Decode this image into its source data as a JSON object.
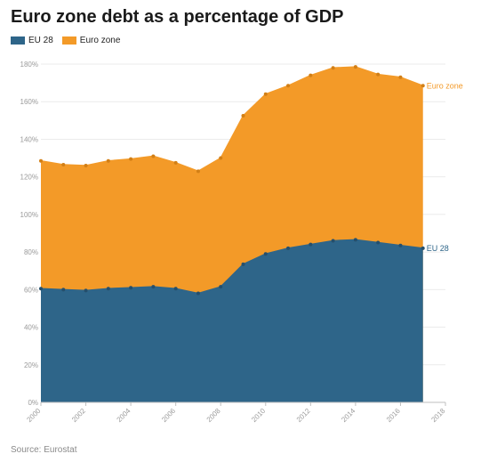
{
  "header": {
    "title": "Euro zone debt as a percentage of GDP"
  },
  "legend": [
    {
      "label": "EU 28",
      "color": "#2e6589"
    },
    {
      "label": "Euro zone",
      "color": "#f39a28"
    }
  ],
  "source": "Source: Eurostat",
  "chart_data": {
    "type": "area",
    "x": [
      2000,
      2001,
      2002,
      2003,
      2004,
      2005,
      2006,
      2007,
      2008,
      2009,
      2010,
      2011,
      2012,
      2013,
      2014,
      2015,
      2016,
      2017
    ],
    "series": [
      {
        "name": "EU 28",
        "color": "#2e6589",
        "values": [
          60.5,
          60,
          59.5,
          60.5,
          61,
          61.5,
          60.5,
          58,
          61.5,
          73.5,
          79,
          82,
          84,
          86,
          86.5,
          85,
          83.5,
          82
        ]
      },
      {
        "name": "Euro zone",
        "color": "#f39a28",
        "values": [
          128.5,
          126.5,
          126,
          128.5,
          129.5,
          131,
          127.5,
          123,
          130,
          152.5,
          164,
          168.5,
          174,
          178,
          178.5,
          174.5,
          173,
          168.5
        ]
      }
    ],
    "xlim": [
      2000,
      2018
    ],
    "ylim": [
      0,
      180
    ],
    "xticks": [
      "2000",
      "2002",
      "2004",
      "2006",
      "2008",
      "2010",
      "2012",
      "2014",
      "2016",
      "2018"
    ],
    "yticks": [
      "0%",
      "20%",
      "40%",
      "60%",
      "80%",
      "100%",
      "120%",
      "140%",
      "160%",
      "180%"
    ],
    "end_labels": [
      "EU 28",
      "Euro zone"
    ],
    "grid": true,
    "legend_position": "top-left"
  }
}
